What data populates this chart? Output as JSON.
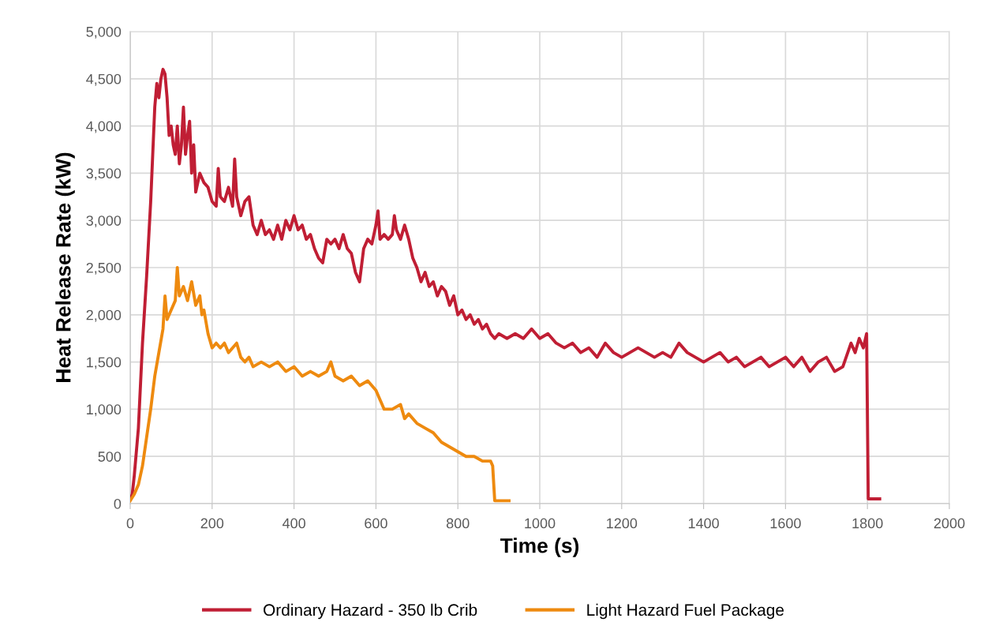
{
  "chart_data": {
    "type": "line",
    "xlabel": "Time (s)",
    "ylabel": "Heat Release Rate (kW)",
    "xlim": [
      0,
      2000
    ],
    "xticks": [
      0,
      200,
      400,
      600,
      800,
      1000,
      1200,
      1400,
      1600,
      1800,
      2000
    ],
    "ylim": [
      0,
      5000
    ],
    "yticks": [
      {
        "value": 0,
        "label": "0"
      },
      {
        "value": 500,
        "label": "500"
      },
      {
        "value": 1000,
        "label": "1,000"
      },
      {
        "value": 1500,
        "label": "1,500"
      },
      {
        "value": 2000,
        "label": "2,000"
      },
      {
        "value": 2500,
        "label": "2,500"
      },
      {
        "value": 3000,
        "label": "3,000"
      },
      {
        "value": 3500,
        "label": "3,500"
      },
      {
        "value": 4000,
        "label": "4,000"
      },
      {
        "value": 4500,
        "label": "4,500"
      },
      {
        "value": 5000,
        "label": "5,000"
      }
    ],
    "grid": true,
    "legend": "bottom",
    "marker": "none",
    "line_style": "solid",
    "series": [
      {
        "name": "Ordinary Hazard - 350 lb Crib",
        "color": "#c01e34",
        "x": [
          0,
          5,
          10,
          20,
          30,
          40,
          45,
          50,
          55,
          60,
          65,
          70,
          75,
          80,
          85,
          90,
          95,
          100,
          105,
          110,
          115,
          120,
          125,
          130,
          135,
          140,
          145,
          150,
          155,
          160,
          170,
          180,
          190,
          200,
          210,
          215,
          220,
          230,
          240,
          250,
          255,
          260,
          270,
          280,
          290,
          300,
          310,
          320,
          330,
          340,
          350,
          360,
          370,
          380,
          390,
          400,
          410,
          420,
          430,
          440,
          450,
          460,
          470,
          480,
          490,
          500,
          510,
          520,
          530,
          540,
          550,
          560,
          570,
          580,
          590,
          600,
          605,
          610,
          620,
          630,
          640,
          645,
          650,
          660,
          670,
          680,
          690,
          700,
          710,
          720,
          730,
          740,
          750,
          760,
          770,
          780,
          790,
          800,
          810,
          820,
          830,
          840,
          850,
          860,
          870,
          880,
          890,
          900,
          920,
          940,
          960,
          980,
          1000,
          1020,
          1040,
          1060,
          1080,
          1100,
          1120,
          1140,
          1160,
          1180,
          1200,
          1220,
          1240,
          1260,
          1280,
          1300,
          1320,
          1340,
          1360,
          1380,
          1400,
          1420,
          1440,
          1460,
          1480,
          1500,
          1520,
          1540,
          1560,
          1580,
          1600,
          1620,
          1640,
          1660,
          1680,
          1700,
          1720,
          1740,
          1760,
          1770,
          1780,
          1790,
          1798,
          1802,
          1830
        ],
        "values": [
          50,
          100,
          300,
          800,
          1700,
          2400,
          2800,
          3200,
          3700,
          4200,
          4450,
          4300,
          4500,
          4600,
          4550,
          4300,
          3900,
          4000,
          3800,
          3700,
          4000,
          3600,
          3800,
          4200,
          3700,
          3900,
          4050,
          3500,
          3800,
          3300,
          3500,
          3400,
          3350,
          3200,
          3150,
          3550,
          3250,
          3200,
          3350,
          3150,
          3650,
          3250,
          3050,
          3200,
          3250,
          2950,
          2850,
          3000,
          2850,
          2900,
          2800,
          2950,
          2800,
          3000,
          2900,
          3050,
          2900,
          2950,
          2800,
          2850,
          2700,
          2600,
          2550,
          2800,
          2750,
          2800,
          2700,
          2850,
          2700,
          2650,
          2450,
          2350,
          2700,
          2800,
          2750,
          2950,
          3100,
          2800,
          2850,
          2800,
          2850,
          3050,
          2900,
          2800,
          2950,
          2800,
          2600,
          2500,
          2350,
          2450,
          2300,
          2350,
          2200,
          2300,
          2250,
          2100,
          2200,
          2000,
          2050,
          1950,
          2000,
          1900,
          1950,
          1850,
          1900,
          1800,
          1750,
          1800,
          1750,
          1800,
          1750,
          1850,
          1750,
          1800,
          1700,
          1650,
          1700,
          1600,
          1650,
          1550,
          1700,
          1600,
          1550,
          1600,
          1650,
          1600,
          1550,
          1600,
          1550,
          1700,
          1600,
          1550,
          1500,
          1550,
          1600,
          1500,
          1550,
          1450,
          1500,
          1550,
          1450,
          1500,
          1550,
          1450,
          1550,
          1400,
          1500,
          1550,
          1400,
          1450,
          1700,
          1600,
          1750,
          1650,
          1800,
          50,
          50
        ]
      },
      {
        "name": "Light Hazard Fuel Package",
        "color": "#ee8a0f",
        "x": [
          0,
          10,
          20,
          30,
          40,
          50,
          60,
          70,
          80,
          85,
          90,
          100,
          110,
          115,
          120,
          130,
          140,
          150,
          160,
          170,
          175,
          180,
          190,
          200,
          210,
          220,
          230,
          240,
          250,
          260,
          270,
          280,
          290,
          300,
          320,
          340,
          360,
          380,
          400,
          420,
          440,
          460,
          480,
          490,
          500,
          520,
          540,
          560,
          580,
          600,
          610,
          620,
          640,
          660,
          670,
          680,
          700,
          720,
          740,
          760,
          780,
          800,
          820,
          840,
          860,
          880,
          885,
          890,
          925
        ],
        "values": [
          30,
          100,
          200,
          400,
          700,
          1000,
          1350,
          1600,
          1850,
          2200,
          1950,
          2050,
          2150,
          2500,
          2200,
          2300,
          2150,
          2350,
          2100,
          2200,
          2000,
          2050,
          1800,
          1650,
          1700,
          1650,
          1700,
          1600,
          1650,
          1700,
          1550,
          1500,
          1550,
          1450,
          1500,
          1450,
          1500,
          1400,
          1450,
          1350,
          1400,
          1350,
          1400,
          1500,
          1350,
          1300,
          1350,
          1250,
          1300,
          1200,
          1100,
          1000,
          1000,
          1050,
          900,
          950,
          850,
          800,
          750,
          650,
          600,
          550,
          500,
          500,
          450,
          450,
          400,
          30,
          30
        ]
      }
    ]
  }
}
